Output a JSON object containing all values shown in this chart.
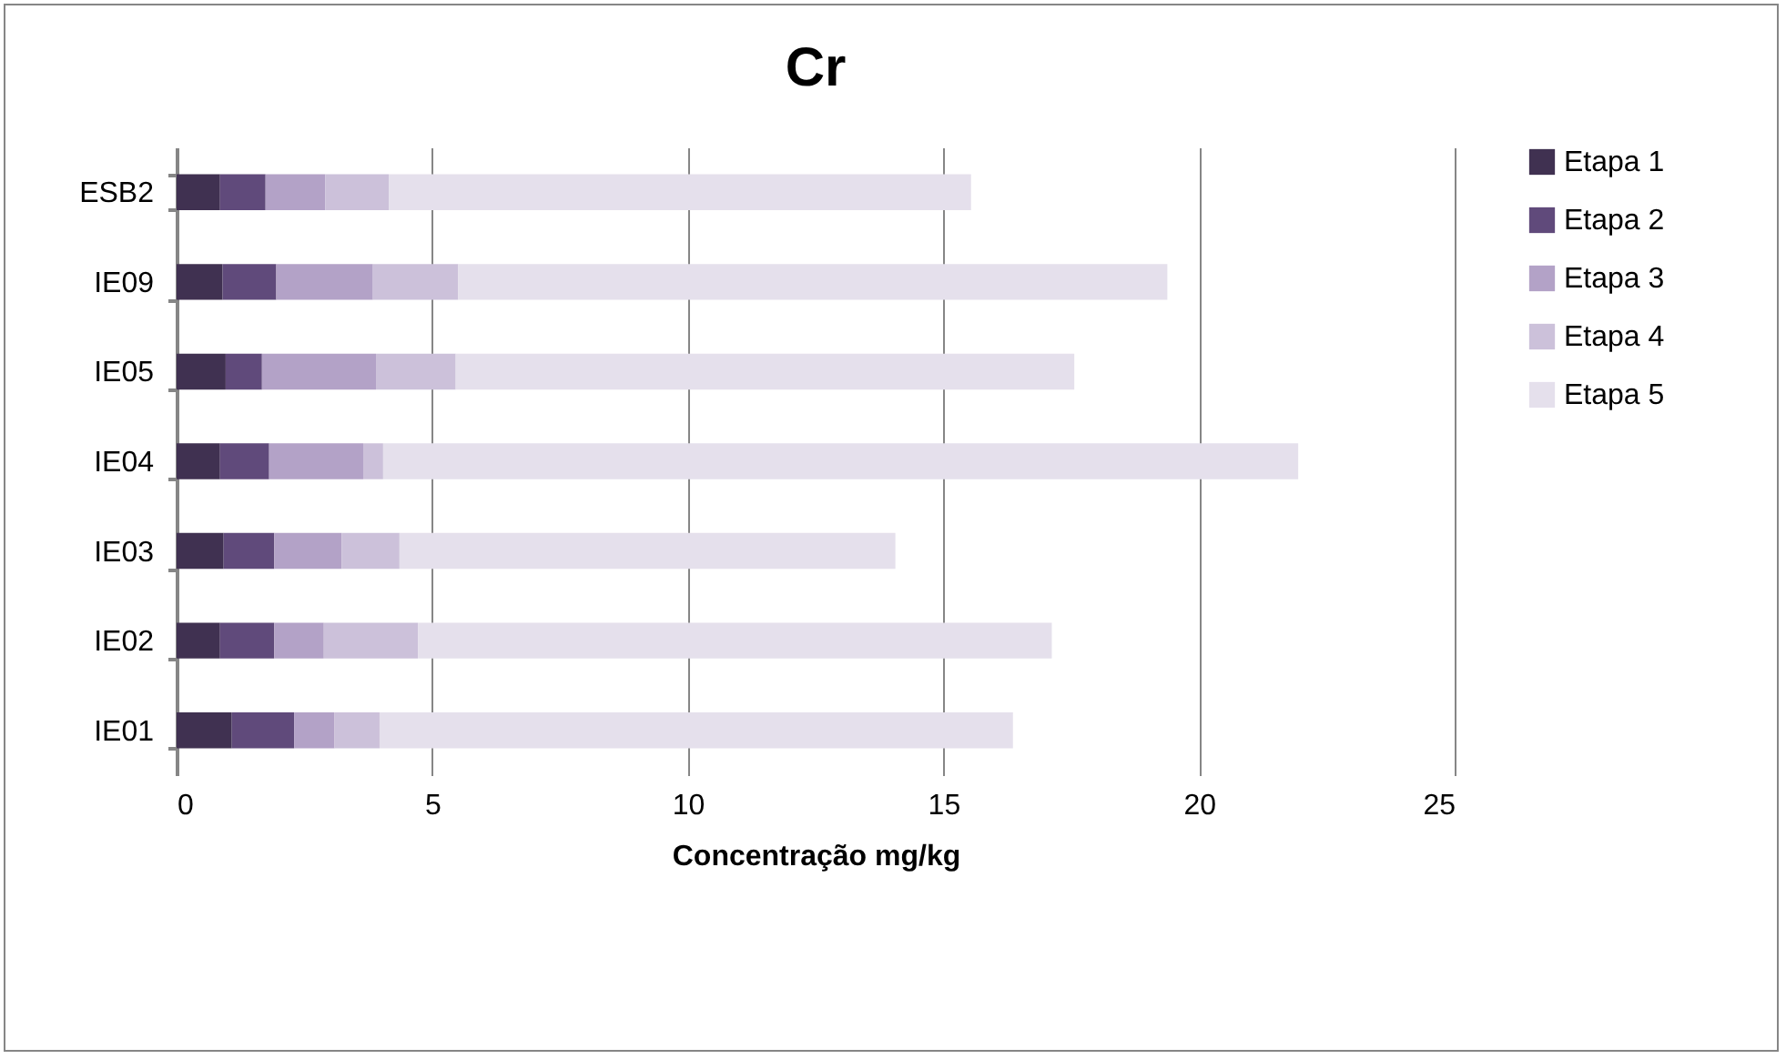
{
  "chart_data": {
    "type": "bar",
    "title": "Cr",
    "xlabel": "Concentração mg/kg",
    "orientation": "horizontal",
    "stacked": true,
    "categories": [
      "ESB2",
      "IE09",
      "IE05",
      "IE04",
      "IE03",
      "IE02",
      "IE01"
    ],
    "series": [
      {
        "name": "Etapa 1",
        "color": "#403151",
        "values": [
          0.85,
          0.9,
          0.96,
          0.85,
          0.92,
          0.85,
          1.08
        ]
      },
      {
        "name": "Etapa 2",
        "color": "#604a7b",
        "values": [
          0.89,
          1.05,
          0.71,
          0.96,
          0.99,
          1.06,
          1.22
        ]
      },
      {
        "name": "Etapa 3",
        "color": "#b3a2c7",
        "values": [
          1.17,
          1.89,
          2.23,
          1.84,
          1.32,
          0.97,
          0.79
        ]
      },
      {
        "name": "Etapa 4",
        "color": "#ccc1da",
        "values": [
          1.24,
          1.67,
          1.56,
          0.39,
          1.13,
          1.84,
          0.88
        ]
      },
      {
        "name": "Etapa 5",
        "color": "#e5e0ec",
        "values": [
          11.39,
          13.87,
          12.1,
          17.9,
          9.7,
          12.4,
          12.39
        ]
      }
    ],
    "xlim": [
      0,
      25
    ],
    "xticks": [
      0,
      5,
      10,
      15,
      20,
      25
    ],
    "grid": "x",
    "legend": "right"
  }
}
